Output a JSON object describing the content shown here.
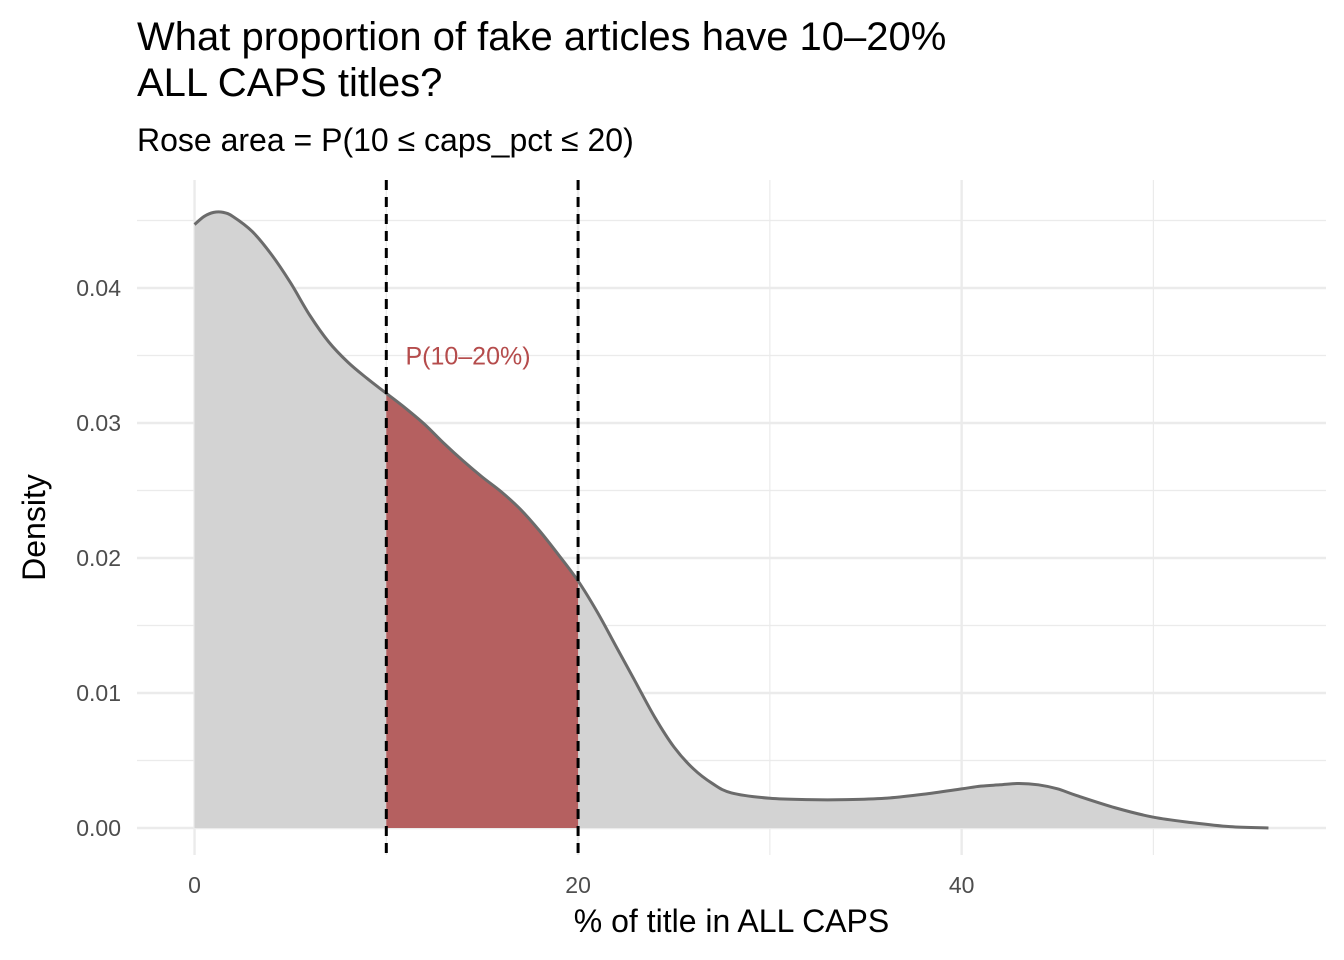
{
  "chart_data": {
    "type": "area",
    "title": "What proportion of fake articles have 10–20%\nALL CAPS titles?",
    "subtitle": "Rose area = P(10 ≤ caps_pct ≤ 20)",
    "xlabel": "% of title in ALL CAPS",
    "ylabel": "Density",
    "xlim": [
      -3,
      59
    ],
    "ylim": [
      -0.002,
      0.048
    ],
    "x_ticks": [
      0,
      20,
      40
    ],
    "x_tick_labels": [
      "0",
      "20",
      "40"
    ],
    "x_minor_ticks": [
      10,
      30,
      50
    ],
    "y_ticks": [
      0,
      0.01,
      0.02,
      0.03,
      0.04
    ],
    "y_tick_labels": [
      "0.00",
      "0.01",
      "0.02",
      "0.03",
      "0.04"
    ],
    "y_minor_ticks": [
      0.005,
      0.015,
      0.025,
      0.035,
      0.045
    ],
    "grid": true,
    "density_curve": {
      "x": [
        0,
        0.5,
        1,
        1.5,
        2,
        3,
        4,
        5,
        6,
        7,
        8,
        9,
        10,
        11,
        12,
        13,
        14,
        15,
        16,
        17,
        18,
        19,
        20,
        21,
        22,
        23,
        24,
        25,
        26,
        27,
        28,
        30,
        32,
        34,
        36,
        38,
        40,
        41,
        42,
        43,
        44,
        45,
        46,
        48,
        50,
        52,
        54,
        56
      ],
      "y": [
        0.0447,
        0.0453,
        0.0456,
        0.0456,
        0.0453,
        0.0442,
        0.0425,
        0.0404,
        0.038,
        0.036,
        0.0345,
        0.0333,
        0.0322,
        0.0311,
        0.0299,
        0.0285,
        0.0272,
        0.026,
        0.0249,
        0.0236,
        0.022,
        0.0202,
        0.0183,
        0.016,
        0.0134,
        0.0108,
        0.0082,
        0.006,
        0.0044,
        0.0033,
        0.0026,
        0.0022,
        0.0021,
        0.0021,
        0.0022,
        0.0025,
        0.0029,
        0.0031,
        0.0032,
        0.0033,
        0.0032,
        0.0029,
        0.0024,
        0.0015,
        0.0008,
        0.0004,
        0.0001,
        0.0
      ]
    },
    "highlight_range": [
      10,
      20
    ],
    "vlines": [
      10,
      20
    ],
    "annotation": {
      "text": "P(10–20%)",
      "x": 11,
      "y": 0.035
    },
    "colors": {
      "area_fill": "#d3d3d3",
      "highlight_fill": "#b56060",
      "curve": "#6b6b6b",
      "vline": "#000000",
      "annotation": "#b54c4c",
      "grid": "#ebebeb"
    }
  }
}
